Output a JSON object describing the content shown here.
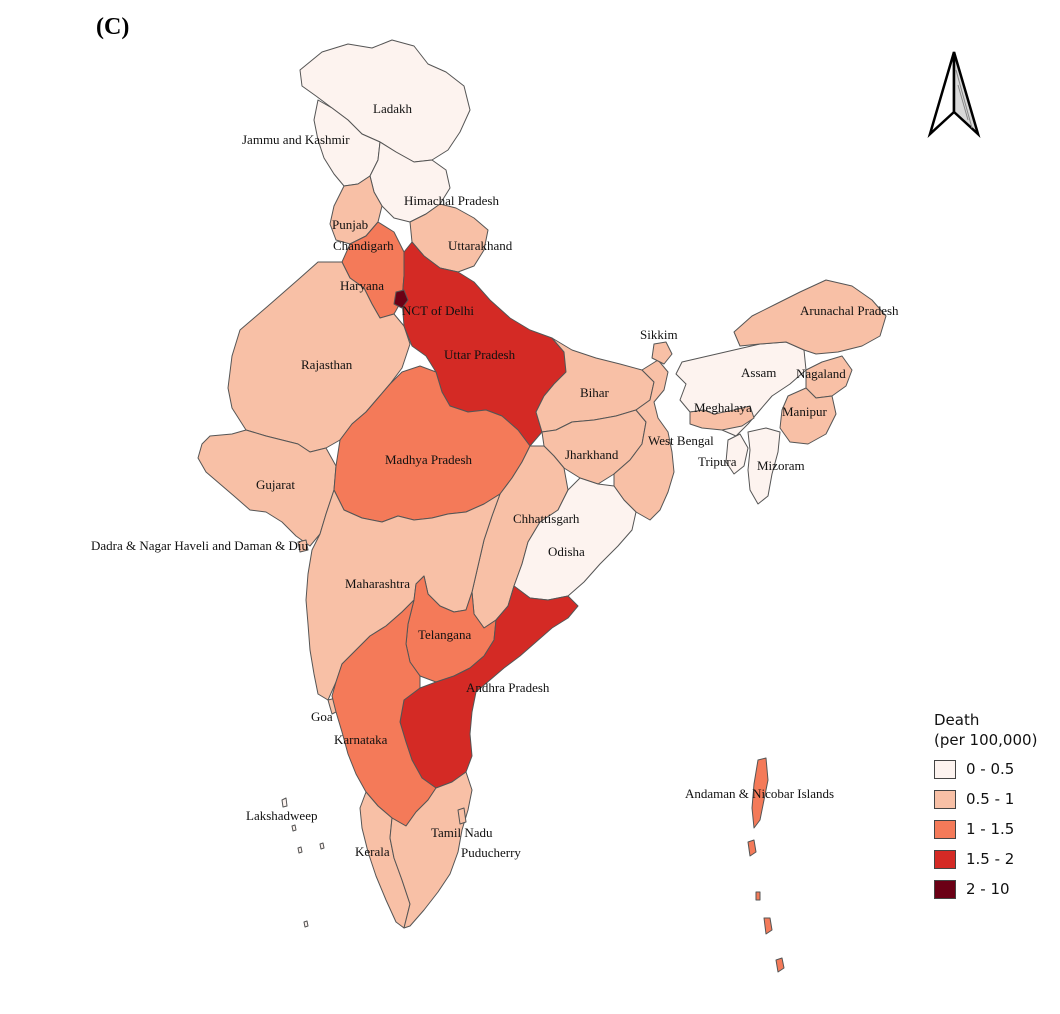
{
  "panel_label": "(C)",
  "legend": {
    "title_line1": "Death",
    "title_line2": "(per 100,000)",
    "classes": [
      {
        "label": "0 - 0.5",
        "color": "#fdf3ef"
      },
      {
        "label": "0.5 - 1",
        "color": "#f8c0a6"
      },
      {
        "label": "1 - 1.5",
        "color": "#f47a59"
      },
      {
        "label": "1.5 - 2",
        "color": "#d42a25"
      },
      {
        "label": "2 - 10",
        "color": "#6b0015"
      }
    ]
  },
  "regions": [
    {
      "name": "Ladakh",
      "class": 0
    },
    {
      "name": "Jammu and Kashmir",
      "class": 0
    },
    {
      "name": "Himachal Pradesh",
      "class": 0
    },
    {
      "name": "Punjab",
      "class": 1
    },
    {
      "name": "Chandigarh",
      "class": 1
    },
    {
      "name": "Uttarakhand",
      "class": 1
    },
    {
      "name": "Haryana",
      "class": 2
    },
    {
      "name": "NCT of Delhi",
      "class": 4
    },
    {
      "name": "Rajasthan",
      "class": 1
    },
    {
      "name": "Uttar Pradesh",
      "class": 3
    },
    {
      "name": "Bihar",
      "class": 1
    },
    {
      "name": "Sikkim",
      "class": 1
    },
    {
      "name": "Arunachal Pradesh",
      "class": 1
    },
    {
      "name": "Assam",
      "class": 0
    },
    {
      "name": "Nagaland",
      "class": 1
    },
    {
      "name": "Meghalaya",
      "class": 1
    },
    {
      "name": "Manipur",
      "class": 1
    },
    {
      "name": "West Bengal",
      "class": 1
    },
    {
      "name": "Jharkhand",
      "class": 1
    },
    {
      "name": "Tripura",
      "class": 0
    },
    {
      "name": "Mizoram",
      "class": 0
    },
    {
      "name": "Gujarat",
      "class": 1
    },
    {
      "name": "Madhya Pradesh",
      "class": 2
    },
    {
      "name": "Chhattisgarh",
      "class": 1
    },
    {
      "name": "Odisha",
      "class": 0
    },
    {
      "name": "Dadra & Nagar Haveli and Daman & Diu",
      "class": 1
    },
    {
      "name": "Maharashtra",
      "class": 1
    },
    {
      "name": "Telangana",
      "class": 2
    },
    {
      "name": "Andhra Pradesh",
      "class": 3
    },
    {
      "name": "Goa",
      "class": 1
    },
    {
      "name": "Karnataka",
      "class": 2
    },
    {
      "name": "Lakshadweep",
      "class": 0
    },
    {
      "name": "Kerala",
      "class": 1
    },
    {
      "name": "Tamil Nadu",
      "class": 1
    },
    {
      "name": "Puducherry",
      "class": 1
    },
    {
      "name": "Andaman & Nicobar Islands",
      "class": 2
    }
  ]
}
